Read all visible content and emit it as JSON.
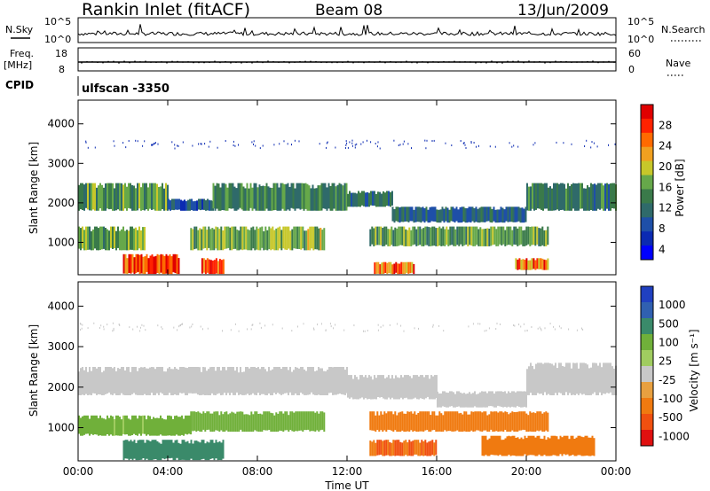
{
  "header": {
    "station": "Rankin Inlet (fitACF)",
    "beam": "Beam 08",
    "date": "13/Jun/2009"
  },
  "noise_panel": {
    "left_label": "N.Sky",
    "left_ticks": [
      "10^5",
      "10^0"
    ],
    "right_label": "N.Search",
    "right_ticks": [
      "10^5",
      "10^0"
    ]
  },
  "freq_panel": {
    "left_label_1": "Freq.",
    "left_label_2": "[MHz]",
    "left_ticks": [
      "18",
      "8"
    ],
    "right_label": "Nave",
    "right_ticks": [
      "60",
      "0"
    ]
  },
  "cpid_panel": {
    "label": "CPID",
    "value": "ulfscan -3350"
  },
  "colors": {
    "power": [
      "#0000ff",
      "#0b2ab2",
      "#1e4fa8",
      "#2f6a6a",
      "#3a7a4a",
      "#66a84a",
      "#c7c72a",
      "#f0a020",
      "#ff6a00",
      "#ff2200",
      "#e00000"
    ],
    "velocity": [
      "#2040c0",
      "#3060b0",
      "#3a8a6a",
      "#70b03a",
      "#a0cc60",
      "#c8c8c8",
      "#e8a040",
      "#f07a10",
      "#f05010",
      "#e01010"
    ]
  },
  "chart_data": [
    {
      "type": "heatmap",
      "name": "Power",
      "ylabel": "Slant Range [km]",
      "ylim": [
        180,
        4600
      ],
      "y_ticks": [
        "4000",
        "3000",
        "2000",
        "1000"
      ],
      "colorbar_label": "Power [dB]",
      "colorbar_ticks": [
        "28",
        "24",
        "20",
        "16",
        "12",
        "8",
        "4"
      ],
      "bands": [
        {
          "x": [
            0,
            4
          ],
          "y": [
            1800,
            2500
          ],
          "v": 14
        },
        {
          "x": [
            4,
            6
          ],
          "y": [
            1800,
            2100
          ],
          "v": 8
        },
        {
          "x": [
            6,
            12
          ],
          "y": [
            1800,
            2500
          ],
          "v": 13
        },
        {
          "x": [
            12,
            14
          ],
          "y": [
            1900,
            2300
          ],
          "v": 11
        },
        {
          "x": [
            14,
            20
          ],
          "y": [
            1500,
            1900
          ],
          "v": 10
        },
        {
          "x": [
            20,
            24
          ],
          "y": [
            1800,
            2500
          ],
          "v": 12
        },
        {
          "x": [
            0,
            3
          ],
          "y": [
            800,
            1400
          ],
          "v": 16
        },
        {
          "x": [
            5,
            11
          ],
          "y": [
            800,
            1400
          ],
          "v": 16
        },
        {
          "x": [
            13,
            21
          ],
          "y": [
            900,
            1400
          ],
          "v": 15
        },
        {
          "x": [
            2,
            4.5
          ],
          "y": [
            200,
            700
          ],
          "v": 28
        },
        {
          "x": [
            5.5,
            6.5
          ],
          "y": [
            200,
            600
          ],
          "v": 26
        },
        {
          "x": [
            13.2,
            15
          ],
          "y": [
            200,
            500
          ],
          "v": 24
        },
        {
          "x": [
            19.5,
            21
          ],
          "y": [
            300,
            600
          ],
          "v": 24
        }
      ]
    },
    {
      "type": "heatmap",
      "name": "Velocity",
      "ylabel": "Slant Range [km]",
      "ylim": [
        180,
        4600
      ],
      "y_ticks": [
        "4000",
        "3000",
        "2000",
        "1000"
      ],
      "x_ticks": [
        "00:00",
        "04:00",
        "08:00",
        "12:00",
        "16:00",
        "20:00",
        "00:00"
      ],
      "xlabel": "Time UT",
      "xlim": [
        0,
        24
      ],
      "colorbar_label": "Velocity [m s⁻¹]",
      "colorbar_ticks": [
        "1000",
        "500",
        "100",
        "25",
        "-25",
        "-100",
        "-500",
        "-1000"
      ],
      "bands": [
        {
          "x": [
            0,
            12
          ],
          "y": [
            1800,
            2500
          ],
          "v": 0
        },
        {
          "x": [
            12,
            16
          ],
          "y": [
            1700,
            2300
          ],
          "v": 0
        },
        {
          "x": [
            16,
            20
          ],
          "y": [
            1500,
            1900
          ],
          "v": 0
        },
        {
          "x": [
            20,
            24
          ],
          "y": [
            1800,
            2600
          ],
          "v": 0
        },
        {
          "x": [
            0,
            5
          ],
          "y": [
            800,
            1300
          ],
          "v": 60
        },
        {
          "x": [
            5,
            11
          ],
          "y": [
            900,
            1400
          ],
          "v": 80
        },
        {
          "x": [
            13,
            21
          ],
          "y": [
            900,
            1400
          ],
          "v": -200
        },
        {
          "x": [
            2,
            6.5
          ],
          "y": [
            200,
            700
          ],
          "v": 150
        },
        {
          "x": [
            13,
            16
          ],
          "y": [
            300,
            700
          ],
          "v": -300
        },
        {
          "x": [
            18,
            23
          ],
          "y": [
            300,
            800
          ],
          "v": -250
        }
      ]
    }
  ]
}
